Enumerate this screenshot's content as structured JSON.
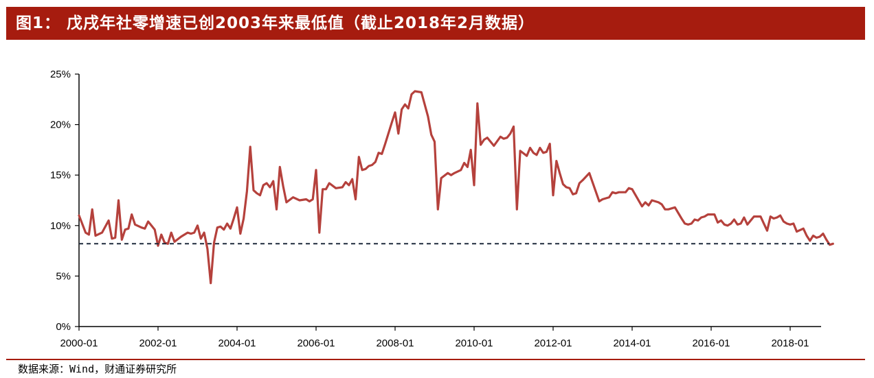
{
  "header": {
    "title": "图1： 戊戌年社零增速已创2003年来最低值（截止2018年2月数据）"
  },
  "footer": {
    "source": "数据来源：Wind，财通证券研究所"
  },
  "colors": {
    "brand": "#a61c0f",
    "series_line": "#b5413c",
    "reference_line": "#1f2a3c"
  },
  "chart_data": {
    "type": "line",
    "title": "图1： 戊戌年社零增速已创2003年来最低值（截止2018年2月数据）",
    "xlabel": "",
    "ylabel": "",
    "ylim": [
      0,
      25
    ],
    "xlim": [
      "2000-01",
      "2019-02"
    ],
    "y_ticks": [
      "0%",
      "5%",
      "10%",
      "15%",
      "20%",
      "25%"
    ],
    "x_ticks": [
      "2000-01",
      "2002-01",
      "2004-01",
      "2006-01",
      "2008-01",
      "2010-01",
      "2012-01",
      "2014-01",
      "2016-01",
      "2018-01"
    ],
    "grid": false,
    "legend": "none",
    "reference_line": {
      "value": 8.2,
      "style": "dashed"
    },
    "series": [
      {
        "points": [
          [
            "2000-01",
            11.0
          ],
          [
            "2000-03",
            9.3
          ],
          [
            "2000-04",
            9.1
          ],
          [
            "2000-05",
            11.6
          ],
          [
            "2000-06",
            9.0
          ],
          [
            "2000-08",
            9.3
          ],
          [
            "2000-10",
            10.5
          ],
          [
            "2000-11",
            8.7
          ],
          [
            "2000-12",
            8.8
          ],
          [
            "2001-01",
            12.5
          ],
          [
            "2001-02",
            8.6
          ],
          [
            "2001-03",
            9.6
          ],
          [
            "2001-04",
            9.7
          ],
          [
            "2001-05",
            11.1
          ],
          [
            "2001-06",
            10.1
          ],
          [
            "2001-08",
            9.8
          ],
          [
            "2001-09",
            9.7
          ],
          [
            "2001-10",
            10.4
          ],
          [
            "2001-11",
            10.0
          ],
          [
            "2001-12",
            9.6
          ],
          [
            "2002-01",
            8.0
          ],
          [
            "2002-02",
            9.1
          ],
          [
            "2002-03",
            8.3
          ],
          [
            "2002-04",
            8.2
          ],
          [
            "2002-05",
            9.3
          ],
          [
            "2002-06",
            8.4
          ],
          [
            "2002-08",
            8.9
          ],
          [
            "2002-10",
            9.3
          ],
          [
            "2002-11",
            9.2
          ],
          [
            "2002-12",
            9.3
          ],
          [
            "2003-01",
            10.0
          ],
          [
            "2003-02",
            8.7
          ],
          [
            "2003-03",
            9.3
          ],
          [
            "2003-04",
            7.7
          ],
          [
            "2003-05",
            4.3
          ],
          [
            "2003-06",
            8.3
          ],
          [
            "2003-07",
            9.8
          ],
          [
            "2003-08",
            9.9
          ],
          [
            "2003-09",
            9.6
          ],
          [
            "2003-10",
            10.2
          ],
          [
            "2003-11",
            9.7
          ],
          [
            "2003-12",
            10.7
          ],
          [
            "2004-01",
            11.8
          ],
          [
            "2004-02",
            9.2
          ],
          [
            "2004-03",
            10.7
          ],
          [
            "2004-04",
            13.4
          ],
          [
            "2004-05",
            17.8
          ],
          [
            "2004-06",
            13.5
          ],
          [
            "2004-07",
            13.2
          ],
          [
            "2004-08",
            13.0
          ],
          [
            "2004-09",
            14.0
          ],
          [
            "2004-10",
            14.2
          ],
          [
            "2004-11",
            13.8
          ],
          [
            "2004-12",
            14.4
          ],
          [
            "2005-01",
            11.6
          ],
          [
            "2005-02",
            15.8
          ],
          [
            "2005-03",
            13.9
          ],
          [
            "2005-04",
            12.3
          ],
          [
            "2005-06",
            12.8
          ],
          [
            "2005-08",
            12.5
          ],
          [
            "2005-10",
            12.6
          ],
          [
            "2005-11",
            12.4
          ],
          [
            "2005-12",
            12.6
          ],
          [
            "2006-01",
            15.5
          ],
          [
            "2006-02",
            9.3
          ],
          [
            "2006-03",
            13.6
          ],
          [
            "2006-04",
            13.6
          ],
          [
            "2006-05",
            14.2
          ],
          [
            "2006-07",
            13.7
          ],
          [
            "2006-09",
            13.8
          ],
          [
            "2006-10",
            14.3
          ],
          [
            "2006-11",
            14.0
          ],
          [
            "2006-12",
            14.6
          ],
          [
            "2007-01",
            12.6
          ],
          [
            "2007-02",
            16.8
          ],
          [
            "2007-03",
            15.5
          ],
          [
            "2007-04",
            15.6
          ],
          [
            "2007-05",
            15.9
          ],
          [
            "2007-06",
            16.0
          ],
          [
            "2007-07",
            16.3
          ],
          [
            "2007-08",
            17.2
          ],
          [
            "2007-09",
            17.1
          ],
          [
            "2007-10",
            18.1
          ],
          [
            "2007-12",
            20.2
          ],
          [
            "2008-01",
            21.2
          ],
          [
            "2008-02",
            19.1
          ],
          [
            "2008-03",
            21.5
          ],
          [
            "2008-04",
            22.0
          ],
          [
            "2008-05",
            21.6
          ],
          [
            "2008-06",
            23.0
          ],
          [
            "2008-07",
            23.3
          ],
          [
            "2008-09",
            23.2
          ],
          [
            "2008-10",
            22.0
          ],
          [
            "2008-11",
            20.8
          ],
          [
            "2008-12",
            19.0
          ],
          [
            "2009-01",
            18.3
          ],
          [
            "2009-02",
            11.6
          ],
          [
            "2009-03",
            14.7
          ],
          [
            "2009-05",
            15.2
          ],
          [
            "2009-06",
            15.0
          ],
          [
            "2009-07",
            15.2
          ],
          [
            "2009-09",
            15.5
          ],
          [
            "2009-10",
            16.2
          ],
          [
            "2009-11",
            15.8
          ],
          [
            "2009-12",
            17.5
          ],
          [
            "2010-01",
            14.0
          ],
          [
            "2010-02",
            22.1
          ],
          [
            "2010-03",
            18.0
          ],
          [
            "2010-04",
            18.5
          ],
          [
            "2010-05",
            18.7
          ],
          [
            "2010-07",
            17.9
          ],
          [
            "2010-09",
            18.8
          ],
          [
            "2010-10",
            18.6
          ],
          [
            "2010-11",
            18.7
          ],
          [
            "2010-12",
            19.1
          ],
          [
            "2011-01",
            19.8
          ],
          [
            "2011-02",
            11.6
          ],
          [
            "2011-03",
            17.4
          ],
          [
            "2011-05",
            16.9
          ],
          [
            "2011-06",
            17.7
          ],
          [
            "2011-07",
            17.2
          ],
          [
            "2011-08",
            17.0
          ],
          [
            "2011-09",
            17.7
          ],
          [
            "2011-10",
            17.2
          ],
          [
            "2011-11",
            17.3
          ],
          [
            "2011-12",
            18.1
          ],
          [
            "2012-01",
            13.0
          ],
          [
            "2012-02",
            16.4
          ],
          [
            "2012-03",
            15.2
          ],
          [
            "2012-04",
            14.1
          ],
          [
            "2012-05",
            13.8
          ],
          [
            "2012-06",
            13.7
          ],
          [
            "2012-07",
            13.1
          ],
          [
            "2012-08",
            13.2
          ],
          [
            "2012-09",
            14.2
          ],
          [
            "2012-10",
            14.5
          ],
          [
            "2012-12",
            15.2
          ],
          [
            "2013-03",
            12.4
          ],
          [
            "2013-04",
            12.6
          ],
          [
            "2013-06",
            12.8
          ],
          [
            "2013-07",
            13.3
          ],
          [
            "2013-08",
            13.2
          ],
          [
            "2013-09",
            13.3
          ],
          [
            "2013-11",
            13.3
          ],
          [
            "2013-12",
            13.7
          ],
          [
            "2014-01",
            13.6
          ],
          [
            "2014-04",
            11.9
          ],
          [
            "2014-05",
            12.3
          ],
          [
            "2014-06",
            12.0
          ],
          [
            "2014-07",
            12.5
          ],
          [
            "2014-09",
            12.3
          ],
          [
            "2014-10",
            12.1
          ],
          [
            "2014-11",
            11.6
          ],
          [
            "2014-12",
            11.6
          ],
          [
            "2015-02",
            11.8
          ],
          [
            "2015-04",
            10.7
          ],
          [
            "2015-05",
            10.2
          ],
          [
            "2015-06",
            10.1
          ],
          [
            "2015-07",
            10.2
          ],
          [
            "2015-08",
            10.6
          ],
          [
            "2015-09",
            10.5
          ],
          [
            "2015-10",
            10.8
          ],
          [
            "2015-11",
            10.9
          ],
          [
            "2015-12",
            11.1
          ],
          [
            "2016-02",
            11.1
          ],
          [
            "2016-03",
            10.3
          ],
          [
            "2016-04",
            10.5
          ],
          [
            "2016-05",
            10.1
          ],
          [
            "2016-06",
            10.0
          ],
          [
            "2016-07",
            10.2
          ],
          [
            "2016-08",
            10.6
          ],
          [
            "2016-09",
            10.1
          ],
          [
            "2016-10",
            10.2
          ],
          [
            "2016-11",
            10.8
          ],
          [
            "2016-12",
            10.1
          ],
          [
            "2017-02",
            10.9
          ],
          [
            "2017-04",
            10.9
          ],
          [
            "2017-05",
            10.2
          ],
          [
            "2017-06",
            9.5
          ],
          [
            "2017-07",
            10.9
          ],
          [
            "2017-08",
            10.7
          ],
          [
            "2017-09",
            10.8
          ],
          [
            "2017-10",
            11.0
          ],
          [
            "2017-11",
            10.4
          ],
          [
            "2017-12",
            10.2
          ],
          [
            "2018-01",
            10.1
          ],
          [
            "2018-02",
            10.2
          ],
          [
            "2018-03",
            9.4
          ],
          [
            "2018-05",
            9.7
          ],
          [
            "2018-06",
            9.0
          ],
          [
            "2018-07",
            8.5
          ],
          [
            "2018-08",
            9.0
          ],
          [
            "2018-09",
            8.8
          ],
          [
            "2018-10",
            8.9
          ],
          [
            "2018-11",
            9.2
          ],
          [
            "2018-12",
            8.6
          ],
          [
            "2019-01",
            8.1
          ],
          [
            "2019-02",
            8.2
          ]
        ]
      }
    ]
  }
}
